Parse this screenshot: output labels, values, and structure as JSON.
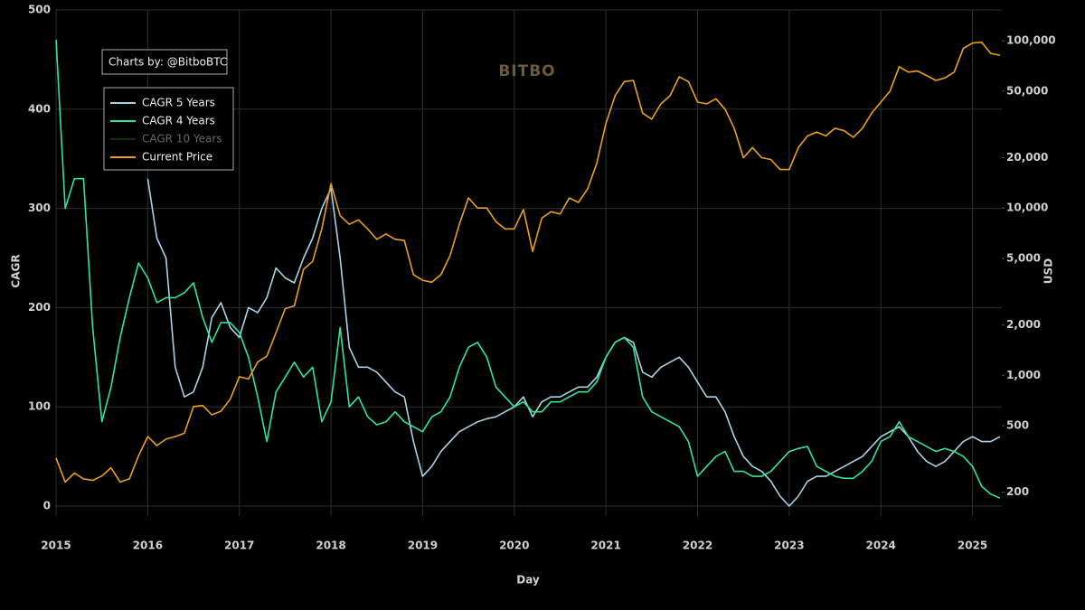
{
  "chart_data": {
    "type": "line",
    "annotation": "Charts by: @BitboBTC",
    "watermark": "BITBO",
    "xlabel": "Day",
    "ylabel": "CAGR",
    "y2label": "USD",
    "background": "#000000",
    "grid": true,
    "legend": "upper left",
    "xlim": [
      2015,
      2025.32
    ],
    "xticks": [
      2015,
      2016,
      2017,
      2018,
      2019,
      2020,
      2021,
      2022,
      2023,
      2024,
      2025
    ],
    "ylim": [
      -10,
      500
    ],
    "yticks": [
      0,
      100,
      200,
      300,
      400,
      500
    ],
    "y2scale": "log",
    "y2lim": [
      144,
      153000
    ],
    "y2ticks": [
      200,
      500,
      {
        "value": 1000,
        "label": "1,000"
      },
      {
        "value": 2000,
        "label": "2,000"
      },
      {
        "value": 5000,
        "label": "5,000"
      },
      {
        "value": 10000,
        "label": "10,000"
      },
      {
        "value": 20000,
        "label": "20,000"
      },
      {
        "value": 50000,
        "label": "50,000"
      },
      {
        "value": 100000,
        "label": "100,000"
      }
    ],
    "x": [
      2015.0,
      2015.1,
      2015.2,
      2015.3,
      2015.4,
      2015.5,
      2015.6,
      2015.7,
      2015.8,
      2015.9,
      2016.0,
      2016.1,
      2016.2,
      2016.3,
      2016.4,
      2016.5,
      2016.6,
      2016.7,
      2016.8,
      2016.9,
      2017.0,
      2017.1,
      2017.2,
      2017.3,
      2017.4,
      2017.5,
      2017.6,
      2017.7,
      2017.8,
      2017.9,
      2018.0,
      2018.1,
      2018.2,
      2018.3,
      2018.4,
      2018.5,
      2018.6,
      2018.7,
      2018.8,
      2018.9,
      2019.0,
      2019.1,
      2019.2,
      2019.3,
      2019.4,
      2019.5,
      2019.6,
      2019.7,
      2019.8,
      2019.9,
      2020.0,
      2020.1,
      2020.2,
      2020.3,
      2020.4,
      2020.5,
      2020.6,
      2020.7,
      2020.8,
      2020.9,
      2021.0,
      2021.1,
      2021.2,
      2021.3,
      2021.4,
      2021.5,
      2021.6,
      2021.7,
      2021.8,
      2021.9,
      2022.0,
      2022.1,
      2022.2,
      2022.3,
      2022.4,
      2022.5,
      2022.6,
      2022.7,
      2022.8,
      2022.9,
      2023.0,
      2023.1,
      2023.2,
      2023.3,
      2023.4,
      2023.5,
      2023.6,
      2023.7,
      2023.8,
      2023.9,
      2024.0,
      2024.1,
      2024.2,
      2024.3,
      2024.4,
      2024.5,
      2024.6,
      2024.7,
      2024.8,
      2024.9,
      2025.0,
      2025.1,
      2025.2,
      2025.3
    ],
    "series": [
      {
        "name": "CAGR 5 Years",
        "color": "#a9d3e6",
        "visible": true,
        "values": [
          null,
          null,
          null,
          null,
          null,
          null,
          null,
          null,
          null,
          null,
          330,
          270,
          250,
          140,
          110,
          115,
          140,
          190,
          205,
          180,
          170,
          200,
          195,
          210,
          240,
          230,
          225,
          250,
          270,
          300,
          320,
          250,
          160,
          140,
          140,
          135,
          125,
          115,
          110,
          65,
          30,
          40,
          55,
          65,
          75,
          80,
          85,
          88,
          90,
          95,
          100,
          110,
          90,
          105,
          110,
          110,
          115,
          120,
          120,
          130,
          150,
          165,
          170,
          165,
          135,
          130,
          140,
          145,
          150,
          140,
          125,
          110,
          110,
          95,
          70,
          50,
          40,
          35,
          25,
          10,
          0,
          10,
          25,
          30,
          30,
          35,
          40,
          45,
          50,
          60,
          70,
          75,
          80,
          70,
          55,
          45,
          40,
          45,
          55,
          65,
          70,
          65,
          65,
          70
        ]
      },
      {
        "name": "CAGR 4 Years",
        "color": "#2ee59d",
        "visible": true,
        "values": [
          470,
          300,
          330,
          330,
          180,
          85,
          120,
          170,
          210,
          245,
          230,
          205,
          210,
          210,
          215,
          225,
          190,
          165,
          185,
          185,
          175,
          150,
          110,
          65,
          115,
          130,
          145,
          130,
          140,
          85,
          105,
          180,
          100,
          110,
          90,
          82,
          85,
          95,
          85,
          80,
          75,
          90,
          95,
          110,
          140,
          160,
          165,
          150,
          120,
          110,
          100,
          105,
          95,
          95,
          105,
          105,
          110,
          115,
          115,
          125,
          150,
          165,
          170,
          160,
          110,
          95,
          90,
          85,
          80,
          65,
          30,
          40,
          50,
          55,
          35,
          35,
          30,
          30,
          35,
          45,
          55,
          58,
          60,
          40,
          35,
          30,
          28,
          28,
          35,
          45,
          65,
          70,
          85,
          70,
          65,
          60,
          55,
          58,
          55,
          50,
          40,
          20,
          12,
          8
        ]
      },
      {
        "name": "CAGR 10 Years",
        "color": "#1b5e20",
        "visible": false,
        "values": [
          null,
          null,
          null,
          null,
          null,
          null,
          null,
          null,
          null,
          null,
          null,
          null,
          null,
          null,
          null,
          null,
          null,
          null,
          null,
          null,
          null,
          null,
          null,
          null,
          null,
          null,
          null,
          null,
          null,
          null,
          null,
          null,
          null,
          null,
          null,
          null,
          null,
          null,
          null,
          null,
          null,
          null,
          null,
          null,
          null,
          null,
          null,
          null,
          null,
          null,
          null,
          null,
          null,
          null,
          null,
          null,
          null,
          null,
          null,
          null,
          null,
          null,
          null,
          null,
          null,
          null,
          null,
          null,
          null,
          null,
          null,
          null,
          null,
          null,
          null,
          null,
          null,
          null,
          null,
          null,
          null,
          null,
          null,
          null,
          null,
          null,
          null,
          null,
          null,
          null,
          null,
          null,
          null,
          null,
          null,
          null,
          null,
          null,
          null,
          null,
          null,
          null,
          null,
          null
        ]
      },
      {
        "name": "Current Price",
        "color": "#e8a020",
        "visible": true,
        "axis": "y2",
        "values": [
          320,
          230,
          260,
          240,
          235,
          250,
          280,
          230,
          240,
          330,
          430,
          380,
          415,
          430,
          450,
          650,
          660,
          580,
          610,
          720,
          980,
          950,
          1200,
          1300,
          1800,
          2500,
          2600,
          4300,
          4800,
          7500,
          14000,
          9000,
          8000,
          8500,
          7500,
          6500,
          7000,
          6500,
          6400,
          4000,
          3700,
          3600,
          4000,
          5200,
          8000,
          11500,
          10000,
          10000,
          8300,
          7500,
          7500,
          9800,
          5500,
          8700,
          9500,
          9200,
          11500,
          10800,
          13000,
          18500,
          32000,
          47000,
          57000,
          58000,
          37000,
          34000,
          42000,
          47000,
          61000,
          57000,
          43000,
          42000,
          45000,
          39000,
          30000,
          20000,
          23000,
          20000,
          19500,
          17000,
          17000,
          23000,
          27000,
          28500,
          27000,
          30000,
          29000,
          26500,
          30000,
          37000,
          43000,
          50000,
          70000,
          65000,
          66000,
          62000,
          58000,
          60000,
          65000,
          90000,
          97000,
          98000,
          84000,
          82000
        ]
      }
    ]
  }
}
